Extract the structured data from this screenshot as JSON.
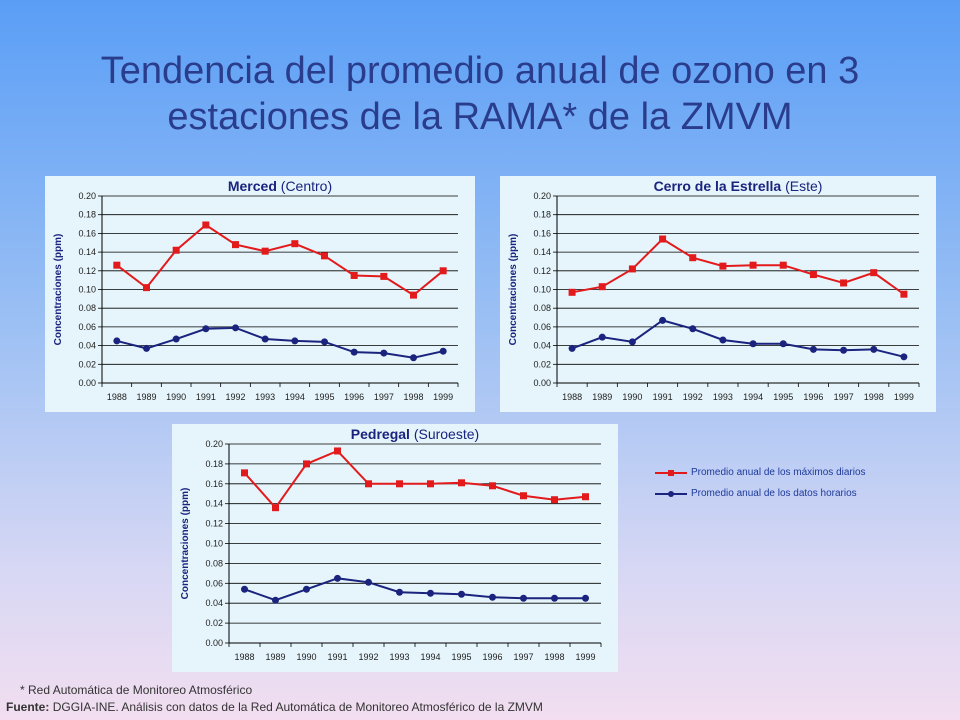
{
  "page": {
    "title_line1": "Tendencia del promedio anual de ozono en 3",
    "title_line2": "estaciones de la RAMA* de la ZMVM",
    "footnote": "* Red Automática de Monitoreo Atmosférico",
    "source_label": "Fuente:",
    "source_text": "DGGIA-INE.  Análisis con datos de la Red Automática de Monitoreo Atmosférico de la ZMVM"
  },
  "legend": {
    "items": [
      {
        "label": "Promedio anual de los máximos diarios",
        "color": "#e31a1c",
        "marker": "square"
      },
      {
        "label": "Promedio anual de los datos horarios",
        "color": "#1a237e",
        "marker": "circle"
      }
    ]
  },
  "chart_data": [
    {
      "type": "line",
      "title_bold": "Merced",
      "title_rest": " (Centro)",
      "ylabel": "Concentraciones  (ppm)",
      "categories": [
        "1988",
        "1989",
        "1990",
        "1991",
        "1992",
        "1993",
        "1994",
        "1995",
        "1996",
        "1997",
        "1998",
        "1999"
      ],
      "ylim": [
        0,
        0.2
      ],
      "yticks": [
        "0.00",
        "0.02",
        "0.04",
        "0.06",
        "0.08",
        "0.10",
        "0.12",
        "0.14",
        "0.16",
        "0.18",
        "0.20"
      ],
      "grid": true,
      "series": [
        {
          "name": "Promedio anual de los máximos diarios",
          "color": "#e31a1c",
          "marker": "square",
          "values": [
            0.126,
            0.102,
            0.142,
            0.169,
            0.148,
            0.141,
            0.149,
            0.136,
            0.115,
            0.114,
            0.094,
            0.12
          ]
        },
        {
          "name": "Promedio anual de los datos horarios",
          "color": "#1a237e",
          "marker": "circle",
          "values": [
            0.045,
            0.037,
            0.047,
            0.058,
            0.059,
            0.047,
            0.045,
            0.044,
            0.033,
            0.032,
            0.027,
            0.034
          ]
        }
      ]
    },
    {
      "type": "line",
      "title_bold": "Cerro de la Estrella",
      "title_rest": " (Este)",
      "ylabel": "Concentraciones  (ppm)",
      "categories": [
        "1988",
        "1989",
        "1990",
        "1991",
        "1992",
        "1993",
        "1994",
        "1995",
        "1996",
        "1997",
        "1998",
        "1999"
      ],
      "ylim": [
        0,
        0.2
      ],
      "yticks": [
        "0.00",
        "0.02",
        "0.04",
        "0.06",
        "0.08",
        "0.10",
        "0.12",
        "0.14",
        "0.16",
        "0.18",
        "0.20"
      ],
      "grid": true,
      "series": [
        {
          "name": "Promedio anual de los máximos diarios",
          "color": "#e31a1c",
          "marker": "square",
          "values": [
            0.097,
            0.103,
            0.122,
            0.154,
            0.134,
            0.125,
            0.126,
            0.126,
            0.116,
            0.107,
            0.118,
            0.095
          ]
        },
        {
          "name": "Promedio anual de los datos horarios",
          "color": "#1a237e",
          "marker": "circle",
          "values": [
            0.037,
            0.049,
            0.044,
            0.067,
            0.058,
            0.046,
            0.042,
            0.042,
            0.036,
            0.035,
            0.036,
            0.028
          ]
        }
      ]
    },
    {
      "type": "line",
      "title_bold": "Pedregal",
      "title_rest": " (Suroeste)",
      "ylabel": "Concentraciones  (ppm)",
      "categories": [
        "1988",
        "1989",
        "1990",
        "1991",
        "1992",
        "1993",
        "1994",
        "1995",
        "1996",
        "1997",
        "1998",
        "1999"
      ],
      "ylim": [
        0,
        0.2
      ],
      "yticks": [
        "0.00",
        "0.02",
        "0.04",
        "0.06",
        "0.08",
        "0.10",
        "0.12",
        "0.14",
        "0.16",
        "0.18",
        "0.20"
      ],
      "grid": true,
      "series": [
        {
          "name": "Promedio anual de los máximos diarios",
          "color": "#e31a1c",
          "marker": "square",
          "values": [
            0.171,
            0.136,
            0.18,
            0.193,
            0.16,
            0.16,
            0.16,
            0.161,
            0.158,
            0.148,
            0.144,
            0.147
          ]
        },
        {
          "name": "Promedio anual de los datos horarios",
          "color": "#1a237e",
          "marker": "circle",
          "values": [
            0.054,
            0.043,
            0.054,
            0.065,
            0.061,
            0.051,
            0.05,
            0.049,
            0.046,
            0.045,
            0.045,
            0.045
          ]
        }
      ]
    }
  ]
}
